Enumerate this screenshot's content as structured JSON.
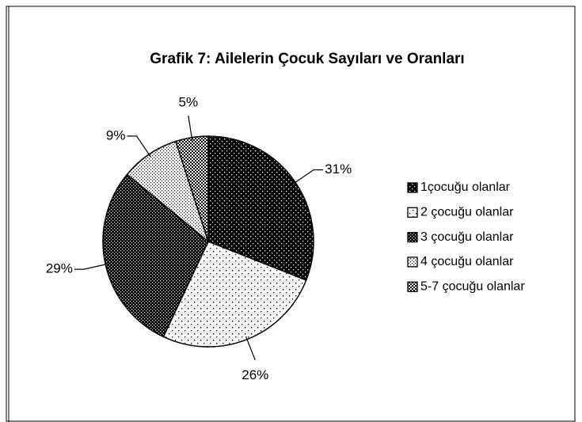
{
  "chart_data": {
    "type": "pie",
    "title": "Grafik 7: Ailelerin Çocuk Sayıları ve  Oranları",
    "categories": [
      "1çocuğu olanlar",
      "2 çocuğu olanlar",
      "3 çocuğu olanlar",
      "4 çocuğu olanlar",
      "5-7 çocuğu olanlar"
    ],
    "values": [
      31,
      26,
      29,
      9,
      5
    ],
    "value_labels": [
      "31%",
      "26%",
      "29%",
      "9%",
      "5%"
    ],
    "legend": "right"
  }
}
